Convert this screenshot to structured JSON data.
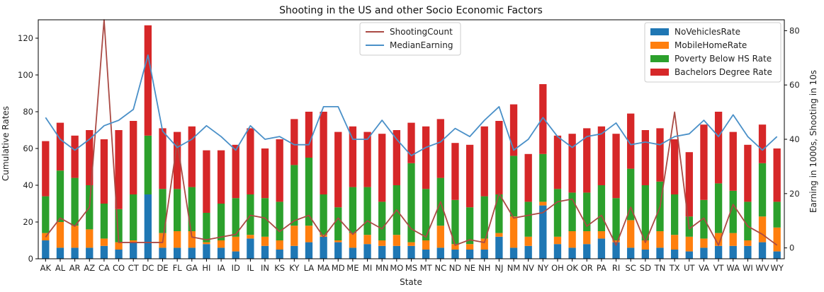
{
  "chart_data": {
    "type": "bar",
    "stacked": true,
    "title": "Shooting in the US and other Socio Economic Factors",
    "xlabel": "State",
    "ylabel": "Cumulative Rates",
    "y2label": "Earning in 1000s, Shooting in 10s",
    "ylim": [
      0,
      130
    ],
    "y2lim": [
      -4,
      84
    ],
    "yticks": [
      0,
      20,
      40,
      60,
      80,
      100,
      120
    ],
    "y2ticks": [
      0,
      20,
      40,
      60,
      80
    ],
    "grid": false,
    "categories": [
      "AK",
      "AL",
      "AR",
      "AZ",
      "CA",
      "CO",
      "CT",
      "DC",
      "DE",
      "FL",
      "GA",
      "HI",
      "IA",
      "ID",
      "IL",
      "IN",
      "KS",
      "KY",
      "LA",
      "MA",
      "MD",
      "ME",
      "MI",
      "MN",
      "MO",
      "MS",
      "MT",
      "NC",
      "ND",
      "NE",
      "NH",
      "NJ",
      "NM",
      "NV",
      "NY",
      "OH",
      "OK",
      "OR",
      "PA",
      "RI",
      "SC",
      "SD",
      "TN",
      "TX",
      "UT",
      "VA",
      "VT",
      "WA",
      "WI",
      "WV",
      "WY"
    ],
    "series": [
      {
        "name": "NoVehiclesRate",
        "color": "#1f77b4",
        "values": [
          10,
          6,
          6,
          6,
          7,
          5,
          9,
          35,
          6,
          6,
          6,
          8,
          6,
          4,
          11,
          7,
          5,
          7,
          9,
          12,
          9,
          6,
          8,
          7,
          7,
          7,
          5,
          6,
          5,
          5,
          5,
          12,
          6,
          7,
          29,
          8,
          6,
          8,
          11,
          9,
          6,
          5,
          6,
          5,
          4,
          6,
          7,
          7,
          7,
          9,
          4
        ]
      },
      {
        "name": "MobileHomeRate",
        "color": "#ff7f0e",
        "values": [
          4,
          14,
          12,
          10,
          4,
          4,
          1,
          0,
          8,
          9,
          9,
          1,
          4,
          8,
          2,
          5,
          5,
          11,
          9,
          1,
          1,
          8,
          5,
          3,
          6,
          2,
          5,
          12,
          3,
          3,
          6,
          2,
          17,
          5,
          2,
          4,
          9,
          7,
          4,
          1,
          15,
          5,
          9,
          8,
          8,
          5,
          7,
          7,
          3,
          14,
          13
        ]
      },
      {
        "name": "Poverty Below HS Rate",
        "color": "#2ca02c",
        "values": [
          20,
          28,
          26,
          24,
          19,
          18,
          25,
          32,
          24,
          23,
          24,
          16,
          20,
          21,
          22,
          21,
          21,
          33,
          37,
          22,
          18,
          25,
          26,
          21,
          27,
          43,
          28,
          26,
          24,
          20,
          23,
          21,
          33,
          19,
          26,
          26,
          21,
          21,
          25,
          23,
          28,
          30,
          27,
          22,
          11,
          21,
          27,
          23,
          21,
          29,
          14
        ]
      },
      {
        "name": "Bachelors Degree Rate",
        "color": "#d62728",
        "values": [
          30,
          26,
          23,
          30,
          35,
          43,
          40,
          60,
          33,
          31,
          33,
          34,
          29,
          29,
          36,
          27,
          34,
          25,
          25,
          45,
          41,
          33,
          30,
          37,
          30,
          22,
          34,
          32,
          31,
          34,
          38,
          40,
          28,
          26,
          38,
          29,
          32,
          35,
          32,
          35,
          30,
          30,
          29,
          30,
          35,
          41,
          39,
          32,
          31,
          21,
          29
        ]
      },
      {
        "name": "ShootingCount",
        "type": "line",
        "axis": "right",
        "color": "#aa4a44",
        "values": [
          4,
          11,
          8,
          15,
          84,
          2,
          2,
          2,
          2,
          39,
          4,
          3,
          4,
          5,
          12,
          11,
          6,
          10,
          12,
          4,
          11,
          5,
          10,
          7,
          14,
          7,
          4,
          17,
          1,
          3,
          2,
          20,
          11,
          12,
          13,
          17,
          18,
          8,
          12,
          1,
          15,
          2,
          15,
          50,
          7,
          11,
          1,
          16,
          8,
          5,
          1
        ]
      },
      {
        "name": "MedianEarning",
        "type": "line",
        "axis": "right",
        "color": "#4a90c8",
        "values": [
          48,
          40,
          36,
          40,
          45,
          47,
          51,
          71,
          43,
          37,
          40,
          45,
          41,
          36,
          45,
          40,
          41,
          38,
          38,
          52,
          52,
          40,
          40,
          47,
          40,
          34,
          37,
          39,
          44,
          41,
          47,
          52,
          36,
          40,
          48,
          41,
          37,
          41,
          42,
          46,
          38,
          39,
          38,
          41,
          42,
          47,
          41,
          49,
          41,
          36,
          41
        ]
      }
    ],
    "legends": [
      {
        "position": "upper center",
        "entries": [
          "ShootingCount",
          "MedianEarning"
        ]
      },
      {
        "position": "upper right",
        "entries": [
          "NoVehiclesRate",
          "MobileHomeRate",
          "Poverty Below HS Rate",
          "Bachelors Degree Rate"
        ]
      }
    ]
  }
}
